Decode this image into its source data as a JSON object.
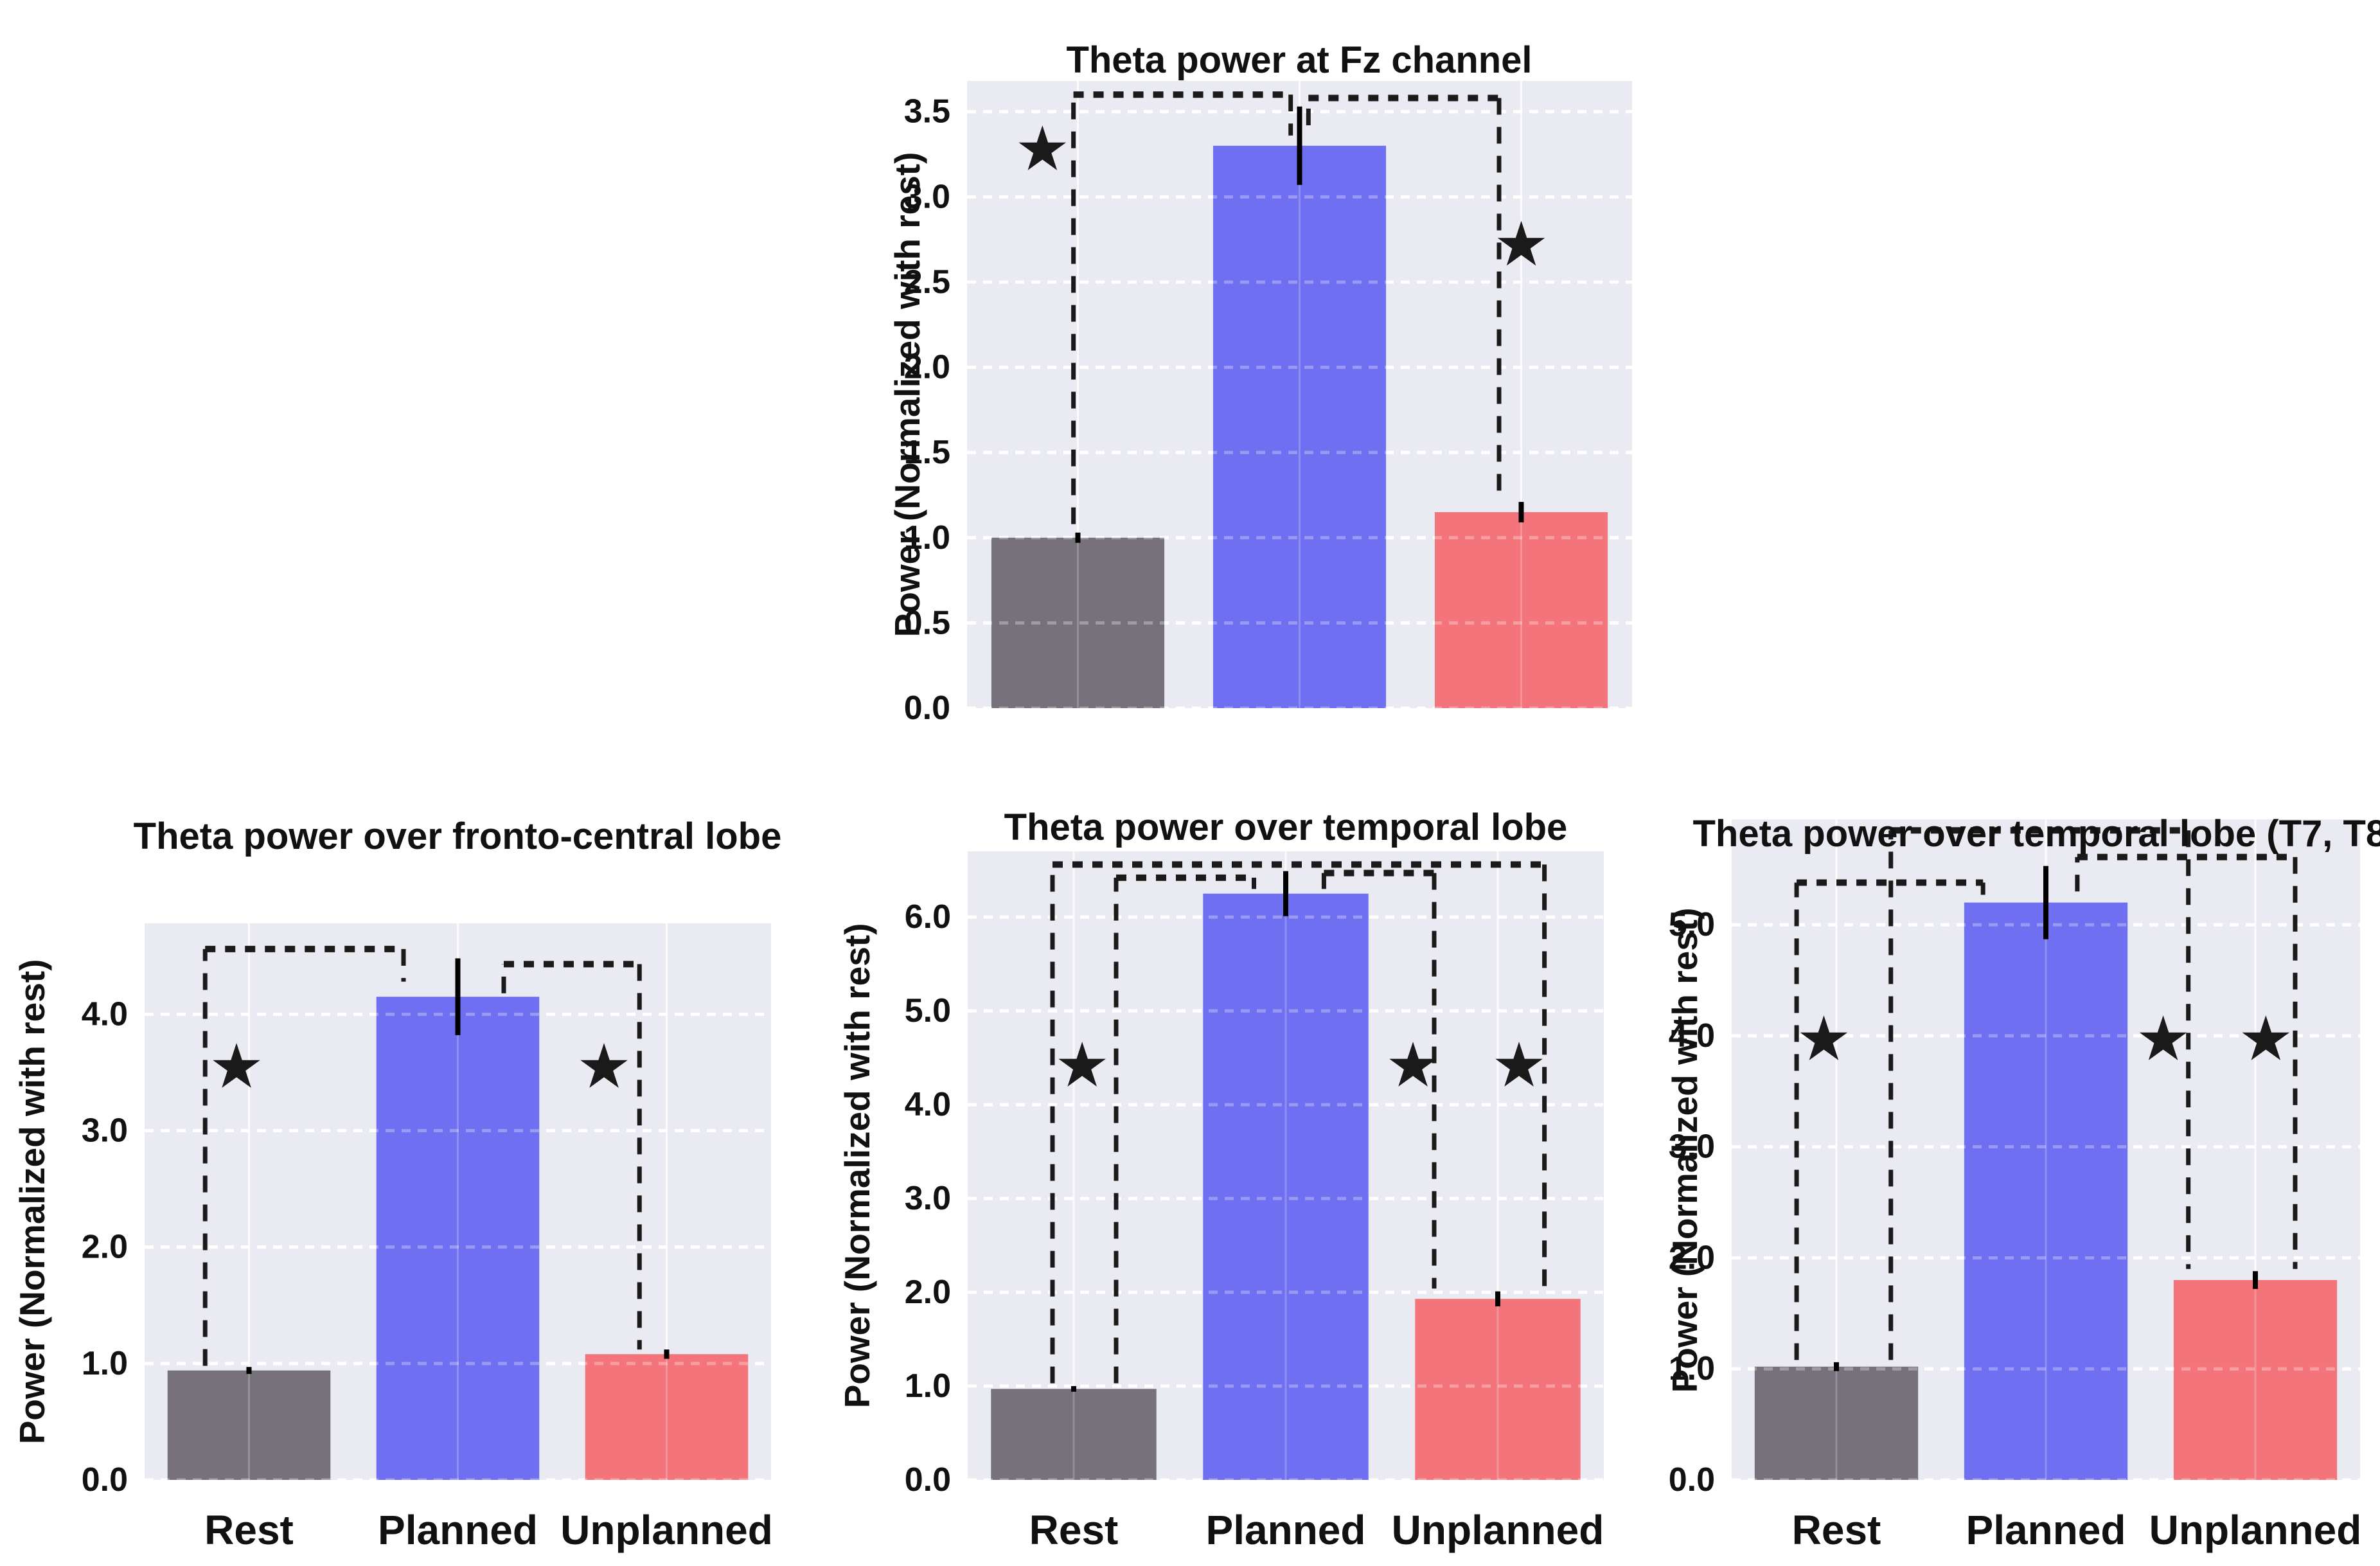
{
  "figure": {
    "background": "#ffffff",
    "plot_background": "#eaeaf2",
    "grid_color": "#ffffff",
    "text_color": "#111111",
    "annotation_color": "#1a1a1a",
    "significance_marker": "★",
    "bar_colors": [
      "#76717A",
      "#6E6FF1",
      "#F4747C"
    ]
  },
  "chart_data": [
    {
      "id": "fz-channel",
      "type": "bar",
      "title": "Theta power at Fz channel",
      "ylabel": "Power (Normalized with rest)",
      "xlabel": "",
      "categories": [
        "Rest",
        "Planned",
        "Unplanned"
      ],
      "show_x_labels": false,
      "values": [
        1.0,
        3.3,
        1.15
      ],
      "errors": [
        0.03,
        0.23,
        0.06
      ],
      "ylim": [
        0,
        3.68
      ],
      "grid": true,
      "yticks": [
        {
          "v": 0.0,
          "label": "0.0"
        },
        {
          "v": 0.5,
          "label": "0.5"
        },
        {
          "v": 1.0,
          "label": "1.0"
        },
        {
          "v": 1.5,
          "label": "1.5"
        },
        {
          "v": 2.0,
          "label": "2.0"
        },
        {
          "v": 2.5,
          "label": "2.5"
        },
        {
          "v": 3.0,
          "label": "3.0"
        },
        {
          "v": 3.5,
          "label": "3.5"
        }
      ],
      "brackets": [
        {
          "x1": -0.02,
          "x2": 0.96,
          "top": 3.6,
          "drop1": 1.08,
          "drop2": 3.36
        },
        {
          "x1": 1.04,
          "x2": 1.9,
          "top": 3.58,
          "drop1": 3.42,
          "drop2": 1.24
        }
      ],
      "stars": [
        {
          "x": -0.16,
          "y": 3.28
        },
        {
          "x": 2.0,
          "y": 2.72
        }
      ]
    },
    {
      "id": "fronto-central",
      "type": "bar",
      "title": "Theta power over fronto-central lobe",
      "ylabel": "Power (Normalized with rest)",
      "xlabel": "",
      "categories": [
        "Rest",
        "Planned",
        "Unplanned"
      ],
      "show_x_labels": true,
      "values": [
        0.94,
        4.15,
        1.08
      ],
      "errors": [
        0.03,
        0.33,
        0.04
      ],
      "ylim": [
        0,
        4.78
      ],
      "grid": true,
      "yticks": [
        {
          "v": 0.0,
          "label": "0.0"
        },
        {
          "v": 1.0,
          "label": "1.0"
        },
        {
          "v": 2.0,
          "label": "2.0"
        },
        {
          "v": 3.0,
          "label": "3.0"
        },
        {
          "v": 4.0,
          "label": "4.0"
        }
      ],
      "brackets": [
        {
          "x1": -0.21,
          "x2": 0.74,
          "top": 4.56,
          "drop1": 0.98,
          "drop2": 4.28
        },
        {
          "x1": 1.22,
          "x2": 1.87,
          "top": 4.43,
          "drop1": 4.18,
          "drop2": 1.12
        }
      ],
      "stars": [
        {
          "x": -0.06,
          "y": 3.55
        },
        {
          "x": 1.7,
          "y": 3.55
        }
      ]
    },
    {
      "id": "temporal-lobe",
      "type": "bar",
      "title": "Theta power over temporal lobe",
      "ylabel": "Power (Normalized with rest)",
      "xlabel": "",
      "categories": [
        "Rest",
        "Planned",
        "Unplanned"
      ],
      "show_x_labels": true,
      "values": [
        0.97,
        6.25,
        1.93
      ],
      "errors": [
        0.03,
        0.24,
        0.08
      ],
      "ylim": [
        0,
        6.7
      ],
      "grid": true,
      "yticks": [
        {
          "v": 0.0,
          "label": "0.0"
        },
        {
          "v": 1.0,
          "label": "1.0"
        },
        {
          "v": 2.0,
          "label": "2.0"
        },
        {
          "v": 3.0,
          "label": "3.0"
        },
        {
          "v": 4.0,
          "label": "4.0"
        },
        {
          "v": 5.0,
          "label": "5.0"
        },
        {
          "v": 6.0,
          "label": "6.0"
        }
      ],
      "brackets": [
        {
          "x1": -0.1,
          "x2": 2.22,
          "top": 6.56,
          "drop1": 1.03,
          "drop2": 2.04
        },
        {
          "x1": 0.2,
          "x2": 0.85,
          "top": 6.42,
          "drop1": 1.03,
          "drop2": 6.3
        },
        {
          "x1": 1.18,
          "x2": 1.7,
          "top": 6.47,
          "drop1": 6.3,
          "drop2": 2.04
        }
      ],
      "stars": [
        {
          "x": 0.04,
          "y": 4.42
        },
        {
          "x": 1.6,
          "y": 4.42
        },
        {
          "x": 2.1,
          "y": 4.42
        }
      ]
    },
    {
      "id": "temporal-lobe-t7-t8",
      "type": "bar",
      "title": "Theta power over temporal lobe (T7, T8)",
      "ylabel": "Power (Normalized with rest)",
      "xlabel": "",
      "categories": [
        "Rest",
        "Planned",
        "Unplanned"
      ],
      "show_x_labels": true,
      "values": [
        1.02,
        5.2,
        1.8
      ],
      "errors": [
        0.04,
        0.33,
        0.08
      ],
      "ylim": [
        0,
        5.95
      ],
      "grid": true,
      "yticks": [
        {
          "v": 0.0,
          "label": "0.0"
        },
        {
          "v": 1.0,
          "label": "1.0"
        },
        {
          "v": 2.0,
          "label": "2.0"
        },
        {
          "v": 3.0,
          "label": "3.0"
        },
        {
          "v": 4.0,
          "label": "4.0"
        },
        {
          "v": 5.0,
          "label": "5.0"
        }
      ],
      "brackets": [
        {
          "x1": -0.19,
          "x2": 0.7,
          "top": 5.38,
          "drop1": 1.08,
          "drop2": 5.27
        },
        {
          "x1": 0.26,
          "x2": 1.68,
          "top": 5.85,
          "drop1": 1.08,
          "drop2": 1.9
        },
        {
          "x1": 1.15,
          "x2": 2.19,
          "top": 5.61,
          "drop1": 5.3,
          "drop2": 1.9
        }
      ],
      "stars": [
        {
          "x": -0.06,
          "y": 3.97
        },
        {
          "x": 1.56,
          "y": 3.97
        },
        {
          "x": 2.05,
          "y": 3.97
        }
      ]
    }
  ]
}
